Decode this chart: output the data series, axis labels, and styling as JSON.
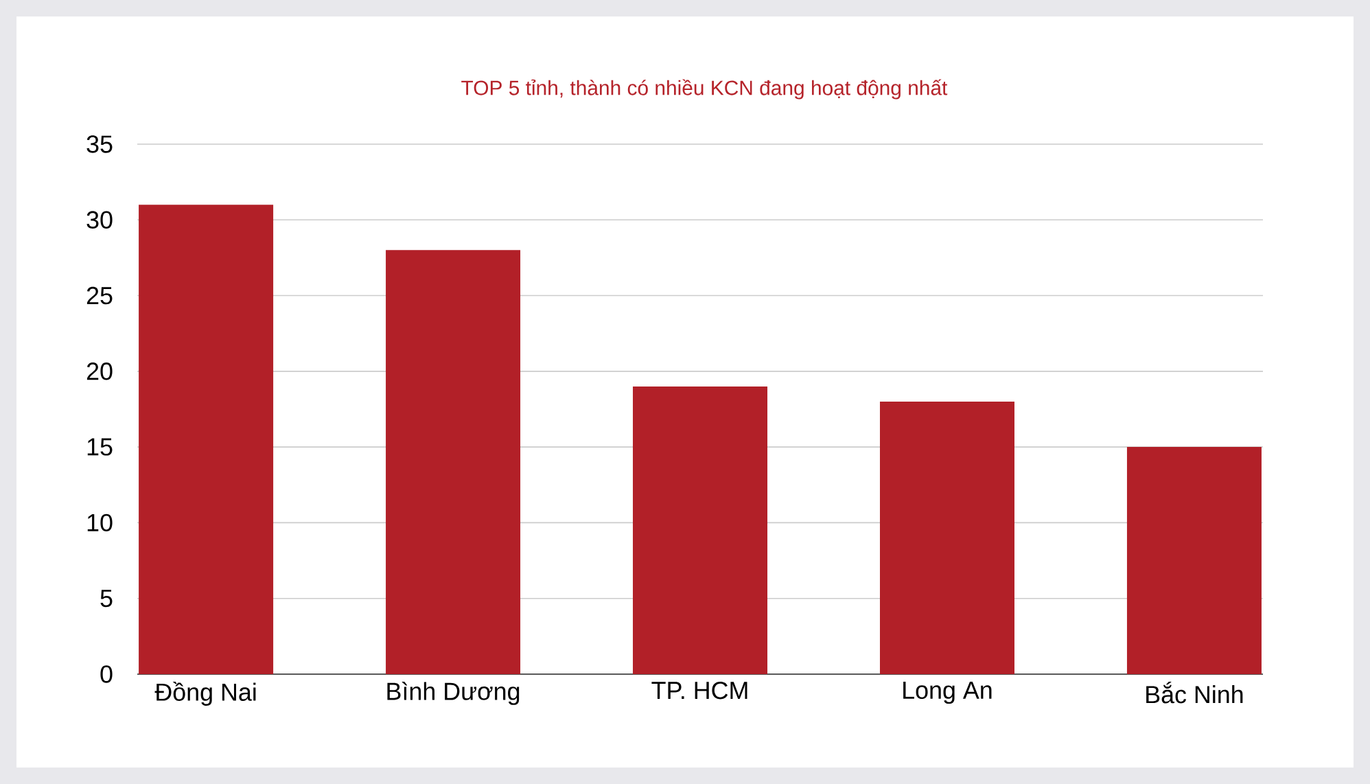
{
  "chart_data": {
    "type": "bar",
    "title": "TOP 5 tỉnh, thành có nhiều KCN đang hoạt động nhất",
    "categories": [
      "Đồng Nai",
      "Bình Dương",
      "TP. HCM",
      "Long An",
      "Bắc Ninh"
    ],
    "values": [
      31,
      28,
      19,
      18,
      15
    ],
    "color": "#b22028",
    "ylim": [
      0,
      35
    ],
    "yticks": [
      0,
      5,
      10,
      15,
      20,
      25,
      30,
      35
    ],
    "grid": "y"
  }
}
